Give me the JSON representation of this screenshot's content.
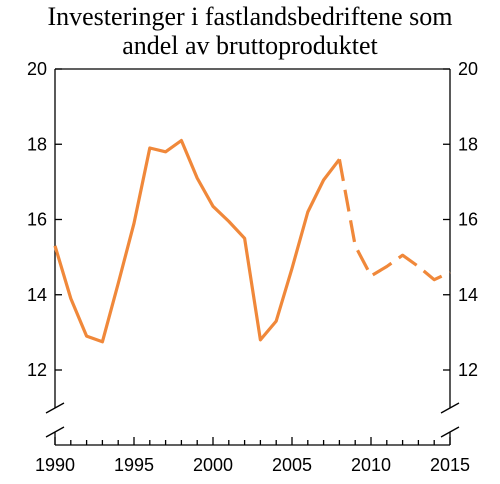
{
  "title_lines": [
    "Investeringer i fastlandsbedriftene som",
    "andel av bruttoproduktet"
  ],
  "chart_data": {
    "type": "line",
    "title": "Investeringer i fastlandsbedriftene som andel av bruttoproduktet",
    "xlabel": "",
    "ylabel": "",
    "xlim": [
      1990,
      2015
    ],
    "ylim": [
      11,
      20
    ],
    "y_axis_break": true,
    "x_ticks": [
      1990,
      1995,
      2000,
      2005,
      2010,
      2015
    ],
    "y_ticks": [
      12,
      14,
      16,
      18,
      20
    ],
    "y_ticks_both_sides": true,
    "grid": false,
    "legend": "none",
    "series": [
      {
        "style": "solid",
        "color": "#f0883a",
        "x": [
          1990,
          1991,
          1992,
          1993,
          1994,
          1995,
          1996,
          1997,
          1998,
          1999,
          2000,
          2001,
          2002,
          2003,
          2004,
          2005,
          2006,
          2007,
          2008
        ],
        "y": [
          15.3,
          13.9,
          12.9,
          12.75,
          14.3,
          15.9,
          17.9,
          17.8,
          18.1,
          17.1,
          16.35,
          15.95,
          15.5,
          12.8,
          13.3,
          14.7,
          16.2,
          17.05,
          17.6
        ]
      },
      {
        "style": "dashed",
        "color": "#f0883a",
        "x": [
          2008,
          2009,
          2010,
          2011,
          2012,
          2013,
          2014,
          2015
        ],
        "y": [
          17.6,
          15.3,
          14.5,
          14.75,
          15.05,
          14.75,
          14.4,
          14.6
        ]
      }
    ]
  }
}
